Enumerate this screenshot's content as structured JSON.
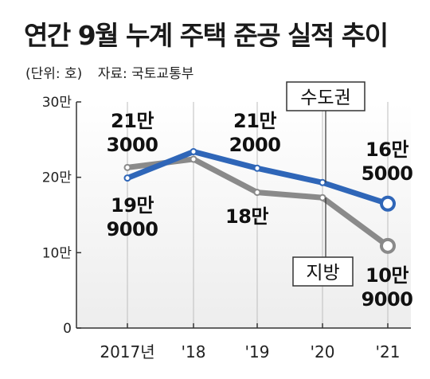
{
  "title": "연간 9월 누계 주택 준공 실적 추이",
  "unit": "(단위: 호)",
  "source": "자료: 국토교통부",
  "chart_data": {
    "type": "line",
    "categories": [
      "2017년",
      "'18",
      "'19",
      "'20",
      "'21"
    ],
    "y_ticks": [
      "0",
      "10만",
      "20만",
      "30만"
    ],
    "ylim": [
      0,
      300000
    ],
    "series": [
      {
        "name": "수도권",
        "color": "#2f66b8",
        "values": [
          199000,
          234000,
          212000,
          193000,
          165000
        ]
      },
      {
        "name": "지방",
        "color": "#8a8a8a",
        "values": [
          213000,
          224000,
          180000,
          173000,
          109000
        ]
      }
    ],
    "data_labels": [
      [
        "21만",
        "3000"
      ],
      [
        "19만",
        "9000"
      ],
      [
        "21만",
        "2000"
      ],
      [
        "18만"
      ],
      [
        "16만",
        "5000"
      ],
      [
        "10만",
        "9000"
      ]
    ],
    "grid": "vertical",
    "legend": "inline"
  }
}
